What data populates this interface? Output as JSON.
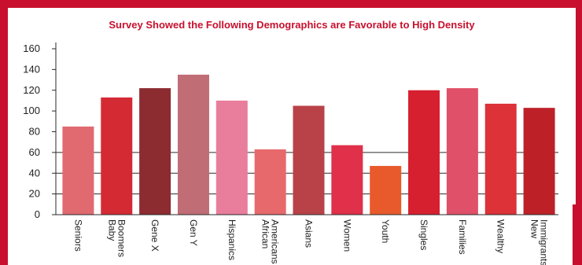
{
  "chart_data": {
    "type": "bar",
    "title": "Survey Showed the Following Demographics are Favorable to High Density",
    "xlabel": "",
    "ylabel": "",
    "categories": [
      "Seniors",
      "Baby Boomers",
      "Gene X",
      "Gen Y",
      "Hispanics",
      "African Americans",
      "Asians",
      "Women",
      "Youth",
      "Singles",
      "Families",
      "Wealthy",
      "New Immigrants"
    ],
    "category_lines": [
      [
        "Seniors"
      ],
      [
        "Baby",
        "Boomers"
      ],
      [
        "Gene X"
      ],
      [
        "Gen Y"
      ],
      [
        "Hispanics"
      ],
      [
        "African",
        "Americans"
      ],
      [
        "Asians"
      ],
      [
        "Women"
      ],
      [
        "Youth"
      ],
      [
        "Singles"
      ],
      [
        "Families"
      ],
      [
        "Wealthy"
      ],
      [
        "New",
        "Immigrants"
      ]
    ],
    "values": [
      85,
      113,
      122,
      135,
      110,
      63,
      105,
      67,
      47,
      120,
      122,
      107,
      103
    ],
    "colors": [
      "#e06a70",
      "#d42a34",
      "#8c2b30",
      "#c06d76",
      "#e87d9c",
      "#e8696b",
      "#b84247",
      "#e0304a",
      "#e85a2c",
      "#d62030",
      "#e05068",
      "#dc3238",
      "#bd2127"
    ],
    "ylim": [
      0,
      160
    ],
    "yticks": [
      0,
      20,
      40,
      60,
      80,
      100,
      120,
      140,
      160
    ],
    "grid": "y",
    "title_color": "#c8102e"
  }
}
